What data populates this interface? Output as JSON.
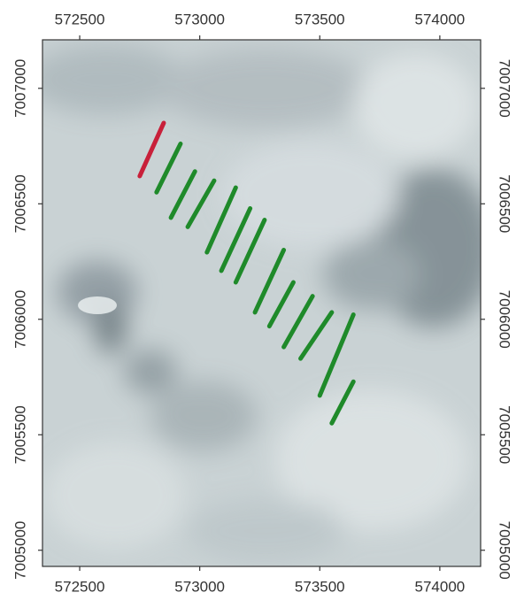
{
  "chart_data": {
    "type": "map",
    "xlim": [
      572345,
      574170
    ],
    "ylim": [
      7004930,
      7007210
    ],
    "xticks": [
      572500,
      573000,
      573500,
      574000
    ],
    "yticks": [
      7005000,
      7005500,
      7006000,
      7006500,
      7007000
    ],
    "lines": [
      {
        "color": "#c8203a",
        "x": [
          572750,
          572850
        ],
        "y": [
          7006620,
          7006850
        ]
      },
      {
        "color": "#1f8a2a",
        "x": [
          572820,
          572920
        ],
        "y": [
          7006550,
          7006760
        ]
      },
      {
        "color": "#1f8a2a",
        "x": [
          572880,
          572980
        ],
        "y": [
          7006440,
          7006640
        ]
      },
      {
        "color": "#1f8a2a",
        "x": [
          572950,
          573060
        ],
        "y": [
          7006400,
          7006600
        ]
      },
      {
        "color": "#1f8a2a",
        "x": [
          573030,
          573150
        ],
        "y": [
          7006290,
          7006570
        ]
      },
      {
        "color": "#1f8a2a",
        "x": [
          573090,
          573210
        ],
        "y": [
          7006210,
          7006480
        ]
      },
      {
        "color": "#1f8a2a",
        "x": [
          573150,
          573270
        ],
        "y": [
          7006160,
          7006430
        ]
      },
      {
        "color": "#1f8a2a",
        "x": [
          573230,
          573350
        ],
        "y": [
          7006030,
          7006300
        ]
      },
      {
        "color": "#1f8a2a",
        "x": [
          573290,
          573390
        ],
        "y": [
          7005970,
          7006160
        ]
      },
      {
        "color": "#1f8a2a",
        "x": [
          573350,
          573470
        ],
        "y": [
          7005880,
          7006100
        ]
      },
      {
        "color": "#1f8a2a",
        "x": [
          573420,
          573550
        ],
        "y": [
          7005830,
          7006030
        ]
      },
      {
        "color": "#1f8a2a",
        "x": [
          573500,
          573640
        ],
        "y": [
          7005670,
          7006020
        ]
      },
      {
        "color": "#1f8a2a",
        "x": [
          573550,
          573640
        ],
        "y": [
          7005550,
          7005730
        ]
      }
    ]
  }
}
